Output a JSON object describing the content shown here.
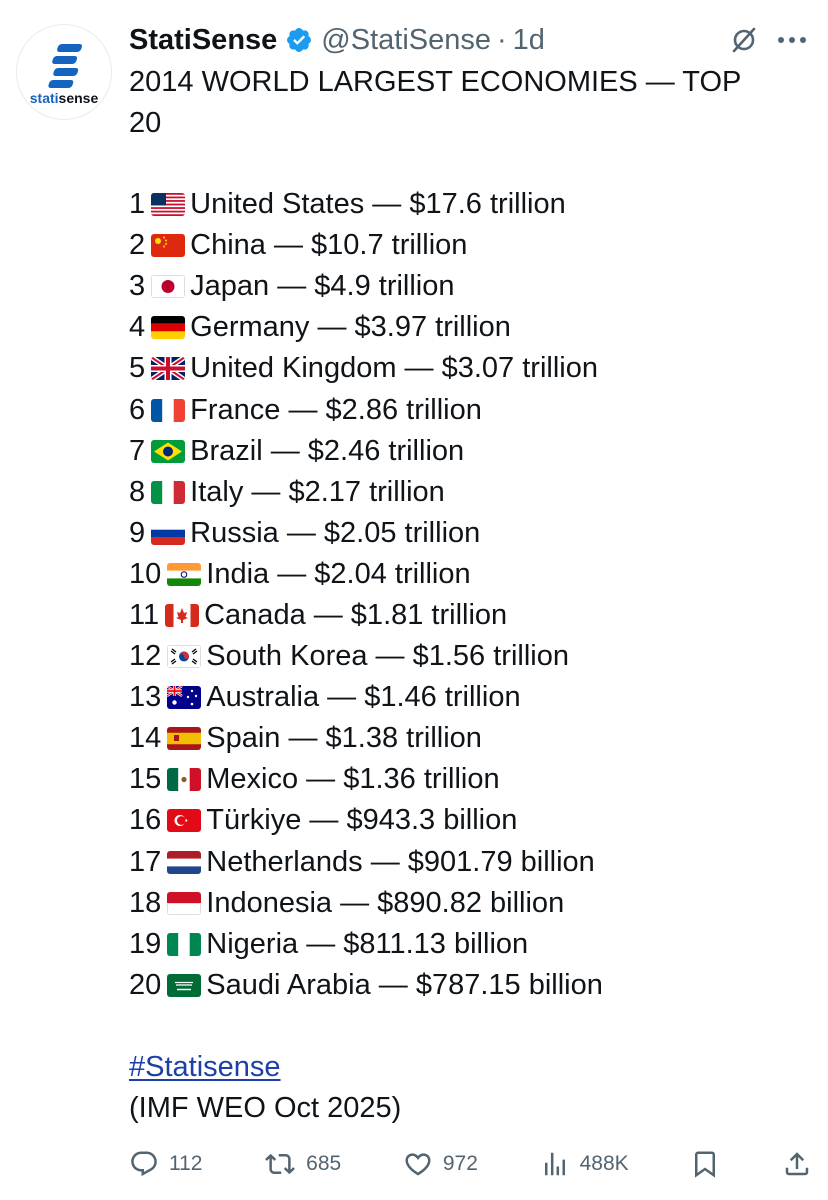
{
  "author": {
    "name": "StatiSense",
    "handle": "@StatiSense",
    "separator": "·",
    "time": "1d",
    "avatar_logo_text_prefix": "stati",
    "avatar_logo_text_suffix": "sense",
    "verified": true
  },
  "tweet": {
    "title_line_1": "2014 WORLD LARGEST ECONOMIES — TOP",
    "title_line_2": "20",
    "rankings": [
      {
        "rank": "1",
        "flag": "united-states-flag",
        "text": "United States — $17.6 trillion"
      },
      {
        "rank": "2",
        "flag": "china-flag",
        "text": "China — $10.7 trillion"
      },
      {
        "rank": "3",
        "flag": "japan-flag",
        "text": "Japan — $4.9 trillion"
      },
      {
        "rank": "4",
        "flag": "germany-flag",
        "text": "Germany — $3.97 trillion"
      },
      {
        "rank": "5",
        "flag": "united-kingdom-flag",
        "text": "United Kingdom — $3.07 trillion"
      },
      {
        "rank": "6",
        "flag": "france-flag",
        "text": "France — $2.86 trillion"
      },
      {
        "rank": "7",
        "flag": "brazil-flag",
        "text": "Brazil — $2.46 trillion"
      },
      {
        "rank": "8",
        "flag": "italy-flag",
        "text": "Italy — $2.17 trillion"
      },
      {
        "rank": "9",
        "flag": "russia-flag",
        "text": "Russia — $2.05 trillion"
      },
      {
        "rank": "10",
        "flag": "india-flag",
        "text": "India — $2.04 trillion"
      },
      {
        "rank": "11",
        "flag": "canada-flag",
        "text": "Canada — $1.81 trillion"
      },
      {
        "rank": "12",
        "flag": "south-korea-flag",
        "text": "South Korea — $1.56 trillion"
      },
      {
        "rank": "13",
        "flag": "australia-flag",
        "text": "Australia — $1.46 trillion"
      },
      {
        "rank": "14",
        "flag": "spain-flag",
        "text": "Spain — $1.38 trillion"
      },
      {
        "rank": "15",
        "flag": "mexico-flag",
        "text": "Mexico — $1.36 trillion"
      },
      {
        "rank": "16",
        "flag": "turkiye-flag",
        "text": "Türkiye — $943.3 billion"
      },
      {
        "rank": "17",
        "flag": "netherlands-flag",
        "text": "Netherlands — $901.79 billion"
      },
      {
        "rank": "18",
        "flag": "indonesia-flag",
        "text": "Indonesia — $890.82 billion"
      },
      {
        "rank": "19",
        "flag": "nigeria-flag",
        "text": "Nigeria — $811.13 billion"
      },
      {
        "rank": "20",
        "flag": "saudi-arabia-flag",
        "text": "Saudi Arabia — $787.15 billion"
      }
    ],
    "hashtag": "#Statisense",
    "source": "(IMF WEO Oct 2025)"
  },
  "actions": {
    "replies": "112",
    "reposts": "685",
    "likes": "972",
    "views": "488K"
  },
  "colors": {
    "text": "#0f1419",
    "muted": "#536471",
    "hashtag": "#1d3fa8",
    "verified_badge": "#1d9bf0",
    "logo_blue": "#1565c0"
  }
}
